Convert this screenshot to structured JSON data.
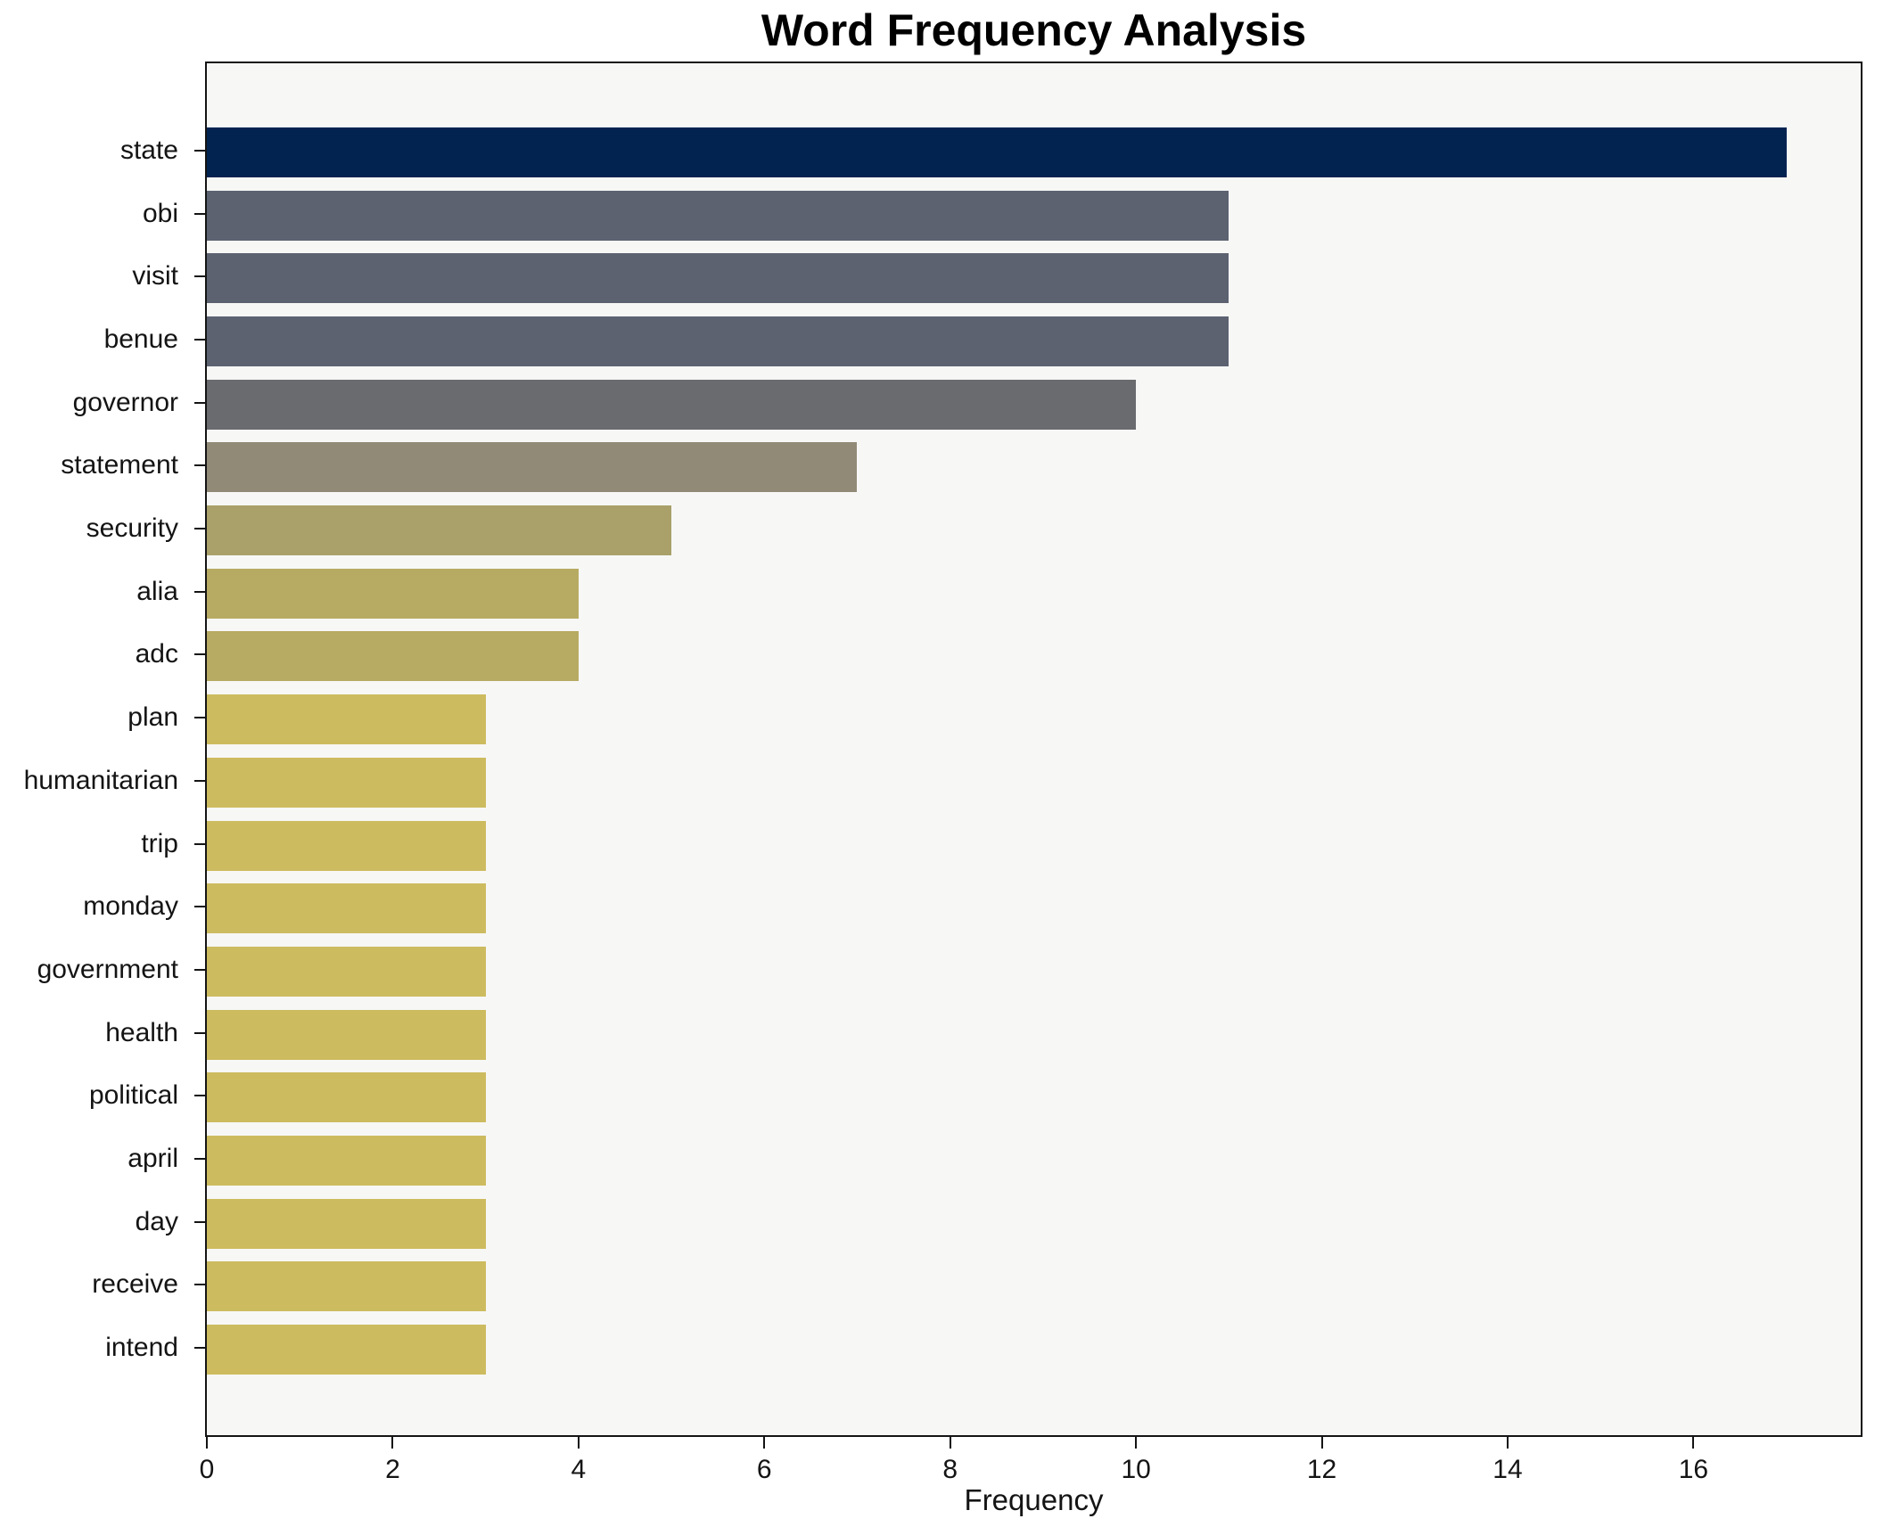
{
  "chart_data": {
    "type": "bar",
    "orientation": "horizontal",
    "title": "Word Frequency Analysis",
    "xlabel": "Frequency",
    "categories": [
      "state",
      "obi",
      "visit",
      "benue",
      "governor",
      "statement",
      "security",
      "alia",
      "adc",
      "plan",
      "humanitarian",
      "trip",
      "monday",
      "government",
      "health",
      "political",
      "april",
      "day",
      "receive",
      "intend"
    ],
    "values": [
      17,
      11,
      11,
      11,
      10,
      7,
      5,
      4,
      4,
      3,
      3,
      3,
      3,
      3,
      3,
      3,
      3,
      3,
      3,
      3
    ],
    "bar_colors": [
      "#022350",
      "#5c6270",
      "#5c6270",
      "#5c6270",
      "#6a6b6e",
      "#908a77",
      "#a9a169",
      "#b7ab63",
      "#b7ab63",
      "#cdbb5f",
      "#cdbb5f",
      "#cdbb5f",
      "#cdbb5f",
      "#cdbb5f",
      "#cdbb5f",
      "#cdbb5f",
      "#cdbb5f",
      "#cdbb5f",
      "#cdbb5f",
      "#cdbb5f"
    ],
    "xticks": [
      0,
      2,
      4,
      6,
      8,
      10,
      12,
      14,
      16
    ],
    "xlim": [
      0,
      17.8
    ],
    "grid": false,
    "plot_background": "#f7f7f6",
    "figure_background": "#ffffff",
    "axis_color": "#141414"
  }
}
